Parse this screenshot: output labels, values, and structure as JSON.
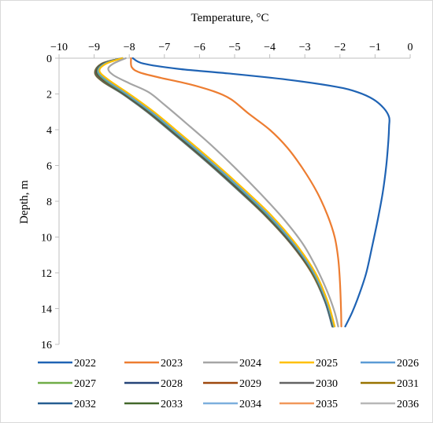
{
  "chart_data": {
    "type": "line",
    "xlabel": "Temperature, °C",
    "ylabel": "Depth, m",
    "xlim": [
      -10,
      0
    ],
    "ylim": [
      0,
      16
    ],
    "x_ticks": [
      -10,
      -9,
      -8,
      -7,
      -6,
      -5,
      -4,
      -3,
      -2,
      -1,
      0
    ],
    "y_ticks": [
      0,
      2,
      4,
      6,
      8,
      10,
      12,
      14,
      16
    ],
    "x_axis_position": "top",
    "y_axis_inverted": true,
    "grid": false,
    "legend_position": "bottom",
    "series": [
      {
        "name": "2022",
        "color": "#1f63b4",
        "points": [
          [
            -7.9,
            0
          ],
          [
            -7.6,
            0.3
          ],
          [
            -6.6,
            0.6
          ],
          [
            -5.2,
            0.85
          ],
          [
            -3.5,
            1.2
          ],
          [
            -2.1,
            1.6
          ],
          [
            -1.5,
            1.9
          ],
          [
            -1.05,
            2.3
          ],
          [
            -0.75,
            2.8
          ],
          [
            -0.6,
            3.3
          ],
          [
            -0.6,
            3.8
          ],
          [
            -0.62,
            4.6
          ],
          [
            -0.68,
            6
          ],
          [
            -0.78,
            7.5
          ],
          [
            -0.92,
            9
          ],
          [
            -1.08,
            10.5
          ],
          [
            -1.25,
            12
          ],
          [
            -1.45,
            13.2
          ],
          [
            -1.65,
            14.2
          ],
          [
            -1.85,
            15
          ]
        ]
      },
      {
        "name": "2023",
        "color": "#ed7d31",
        "points": [
          [
            -7.95,
            0
          ],
          [
            -7.93,
            0.5
          ],
          [
            -7.7,
            0.8
          ],
          [
            -7.1,
            1.1
          ],
          [
            -6.3,
            1.45
          ],
          [
            -5.6,
            1.85
          ],
          [
            -5.1,
            2.3
          ],
          [
            -4.6,
            3.1
          ],
          [
            -4.0,
            4.0
          ],
          [
            -3.5,
            5.0
          ],
          [
            -3.05,
            6.2
          ],
          [
            -2.65,
            7.5
          ],
          [
            -2.35,
            8.8
          ],
          [
            -2.15,
            10
          ],
          [
            -2.05,
            11.2
          ],
          [
            -2.0,
            12.5
          ],
          [
            -1.97,
            14
          ],
          [
            -1.96,
            15
          ]
        ]
      },
      {
        "name": "2024",
        "color": "#a5a5a5",
        "points": [
          [
            -8.1,
            0
          ],
          [
            -8.45,
            0.3
          ],
          [
            -8.6,
            0.6
          ],
          [
            -8.45,
            0.95
          ],
          [
            -8.0,
            1.4
          ],
          [
            -7.45,
            1.9
          ],
          [
            -7.0,
            2.6
          ],
          [
            -6.4,
            3.6
          ],
          [
            -5.7,
            4.8
          ],
          [
            -4.95,
            6.2
          ],
          [
            -4.25,
            7.6
          ],
          [
            -3.6,
            9.0
          ],
          [
            -3.05,
            10.4
          ],
          [
            -2.65,
            11.8
          ],
          [
            -2.35,
            13.1
          ],
          [
            -2.15,
            14.2
          ],
          [
            -2.05,
            15
          ]
        ]
      },
      {
        "name": "2025",
        "color": "#ffc000",
        "points": [
          [
            -8.2,
            0
          ],
          [
            -8.65,
            0.3
          ],
          [
            -8.85,
            0.7
          ],
          [
            -8.6,
            1.2
          ],
          [
            -8.0,
            2.0
          ],
          [
            -7.3,
            3.0
          ],
          [
            -6.5,
            4.3
          ],
          [
            -5.6,
            5.8
          ],
          [
            -4.75,
            7.3
          ],
          [
            -3.95,
            8.8
          ],
          [
            -3.25,
            10.4
          ],
          [
            -2.7,
            12.0
          ],
          [
            -2.35,
            13.6
          ],
          [
            -2.15,
            15
          ]
        ]
      },
      {
        "name": "2026",
        "color": "#5b9bd5",
        "points": [
          [
            -8.2,
            0
          ],
          [
            -8.68,
            0.3
          ],
          [
            -8.88,
            0.72
          ],
          [
            -8.65,
            1.22
          ],
          [
            -8.07,
            2.0
          ],
          [
            -7.37,
            3.0
          ],
          [
            -6.57,
            4.3
          ],
          [
            -5.67,
            5.8
          ],
          [
            -4.82,
            7.3
          ],
          [
            -4.02,
            8.8
          ],
          [
            -3.3,
            10.4
          ],
          [
            -2.74,
            12.0
          ],
          [
            -2.38,
            13.6
          ],
          [
            -2.17,
            15
          ]
        ]
      },
      {
        "name": "2027",
        "color": "#70ad47",
        "points": [
          [
            -8.2,
            0
          ],
          [
            -8.7,
            0.3
          ],
          [
            -8.9,
            0.74
          ],
          [
            -8.68,
            1.24
          ],
          [
            -8.1,
            2.0
          ],
          [
            -7.4,
            3.0
          ],
          [
            -6.6,
            4.3
          ],
          [
            -5.7,
            5.8
          ],
          [
            -4.85,
            7.3
          ],
          [
            -4.05,
            8.8
          ],
          [
            -3.32,
            10.4
          ],
          [
            -2.76,
            12.0
          ],
          [
            -2.39,
            13.6
          ],
          [
            -2.18,
            15
          ]
        ]
      },
      {
        "name": "2028",
        "color": "#264478",
        "points": [
          [
            -8.2,
            0
          ],
          [
            -8.72,
            0.3
          ],
          [
            -8.92,
            0.75
          ],
          [
            -8.7,
            1.25
          ],
          [
            -8.13,
            2.0
          ],
          [
            -7.43,
            3.0
          ],
          [
            -6.63,
            4.3
          ],
          [
            -5.73,
            5.8
          ],
          [
            -4.88,
            7.3
          ],
          [
            -4.07,
            8.8
          ],
          [
            -3.34,
            10.4
          ],
          [
            -2.77,
            12.0
          ],
          [
            -2.4,
            13.6
          ],
          [
            -2.19,
            15
          ]
        ]
      },
      {
        "name": "2029",
        "color": "#9e480e",
        "points": [
          [
            -8.2,
            0
          ],
          [
            -8.73,
            0.3
          ],
          [
            -8.93,
            0.76
          ],
          [
            -8.71,
            1.26
          ],
          [
            -8.14,
            2.0
          ],
          [
            -7.44,
            3.0
          ],
          [
            -6.64,
            4.3
          ],
          [
            -5.74,
            5.8
          ],
          [
            -4.89,
            7.3
          ],
          [
            -4.08,
            8.8
          ],
          [
            -3.35,
            10.4
          ],
          [
            -2.78,
            12.0
          ],
          [
            -2.4,
            13.6
          ],
          [
            -2.19,
            15
          ]
        ]
      },
      {
        "name": "2030",
        "color": "#636363",
        "points": [
          [
            -8.2,
            0
          ],
          [
            -8.74,
            0.3
          ],
          [
            -8.94,
            0.77
          ],
          [
            -8.72,
            1.27
          ],
          [
            -8.15,
            2.0
          ],
          [
            -7.45,
            3.0
          ],
          [
            -6.65,
            4.3
          ],
          [
            -5.75,
            5.8
          ],
          [
            -4.9,
            7.3
          ],
          [
            -4.09,
            8.8
          ],
          [
            -3.36,
            10.4
          ],
          [
            -2.78,
            12.0
          ],
          [
            -2.41,
            13.6
          ],
          [
            -2.2,
            15
          ]
        ]
      },
      {
        "name": "2031",
        "color": "#997300",
        "points": [
          [
            -8.2,
            0
          ],
          [
            -8.75,
            0.3
          ],
          [
            -8.95,
            0.78
          ],
          [
            -8.73,
            1.28
          ],
          [
            -8.16,
            2.0
          ],
          [
            -7.46,
            3.0
          ],
          [
            -6.66,
            4.3
          ],
          [
            -5.76,
            5.8
          ],
          [
            -4.91,
            7.3
          ],
          [
            -4.1,
            8.8
          ],
          [
            -3.36,
            10.4
          ],
          [
            -2.79,
            12.0
          ],
          [
            -2.41,
            13.6
          ],
          [
            -2.2,
            15
          ]
        ]
      },
      {
        "name": "2032",
        "color": "#255e91",
        "points": [
          [
            -8.2,
            0
          ],
          [
            -8.76,
            0.3
          ],
          [
            -8.96,
            0.79
          ],
          [
            -8.74,
            1.29
          ],
          [
            -8.17,
            2.0
          ],
          [
            -7.47,
            3.0
          ],
          [
            -6.67,
            4.3
          ],
          [
            -5.77,
            5.8
          ],
          [
            -4.92,
            7.3
          ],
          [
            -4.11,
            8.8
          ],
          [
            -3.37,
            10.4
          ],
          [
            -2.79,
            12.0
          ],
          [
            -2.42,
            13.6
          ],
          [
            -2.21,
            15
          ]
        ]
      },
      {
        "name": "2033",
        "color": "#43682b",
        "points": [
          [
            -8.2,
            0
          ],
          [
            -8.77,
            0.3
          ],
          [
            -8.97,
            0.8
          ],
          [
            -8.75,
            1.3
          ],
          [
            -8.18,
            2.0
          ],
          [
            -7.48,
            3.0
          ],
          [
            -6.68,
            4.3
          ],
          [
            -5.78,
            5.8
          ],
          [
            -4.93,
            7.3
          ],
          [
            -4.12,
            8.8
          ],
          [
            -3.38,
            10.4
          ],
          [
            -2.8,
            12.0
          ],
          [
            -2.42,
            13.6
          ],
          [
            -2.21,
            15
          ]
        ]
      },
      {
        "name": "2034",
        "color": "#7cafdd",
        "points": [
          [
            -8.2,
            0
          ],
          [
            -8.77,
            0.3
          ],
          [
            -8.97,
            0.8
          ],
          [
            -8.75,
            1.3
          ],
          [
            -8.19,
            2.0
          ],
          [
            -7.49,
            3.0
          ],
          [
            -6.69,
            4.3
          ],
          [
            -5.79,
            5.8
          ],
          [
            -4.94,
            7.3
          ],
          [
            -4.12,
            8.8
          ],
          [
            -3.38,
            10.4
          ],
          [
            -2.8,
            12.0
          ],
          [
            -2.43,
            13.6
          ],
          [
            -2.22,
            15
          ]
        ]
      },
      {
        "name": "2035",
        "color": "#f1975a",
        "points": [
          [
            -8.2,
            0
          ],
          [
            -8.78,
            0.3
          ],
          [
            -8.98,
            0.81
          ],
          [
            -8.76,
            1.31
          ],
          [
            -8.19,
            2.0
          ],
          [
            -7.49,
            3.0
          ],
          [
            -6.69,
            4.3
          ],
          [
            -5.79,
            5.8
          ],
          [
            -4.94,
            7.3
          ],
          [
            -4.13,
            8.8
          ],
          [
            -3.39,
            10.4
          ],
          [
            -2.81,
            12.0
          ],
          [
            -2.43,
            13.6
          ],
          [
            -2.22,
            15
          ]
        ]
      },
      {
        "name": "2036",
        "color": "#b7b7b7",
        "points": [
          [
            -8.2,
            0
          ],
          [
            -8.78,
            0.3
          ],
          [
            -8.98,
            0.81
          ],
          [
            -8.76,
            1.31
          ],
          [
            -8.2,
            2.0
          ],
          [
            -7.5,
            3.0
          ],
          [
            -6.7,
            4.3
          ],
          [
            -5.8,
            5.8
          ],
          [
            -4.95,
            7.3
          ],
          [
            -4.13,
            8.8
          ],
          [
            -3.39,
            10.4
          ],
          [
            -2.81,
            12.0
          ],
          [
            -2.43,
            13.6
          ],
          [
            -2.22,
            15
          ]
        ]
      }
    ]
  }
}
